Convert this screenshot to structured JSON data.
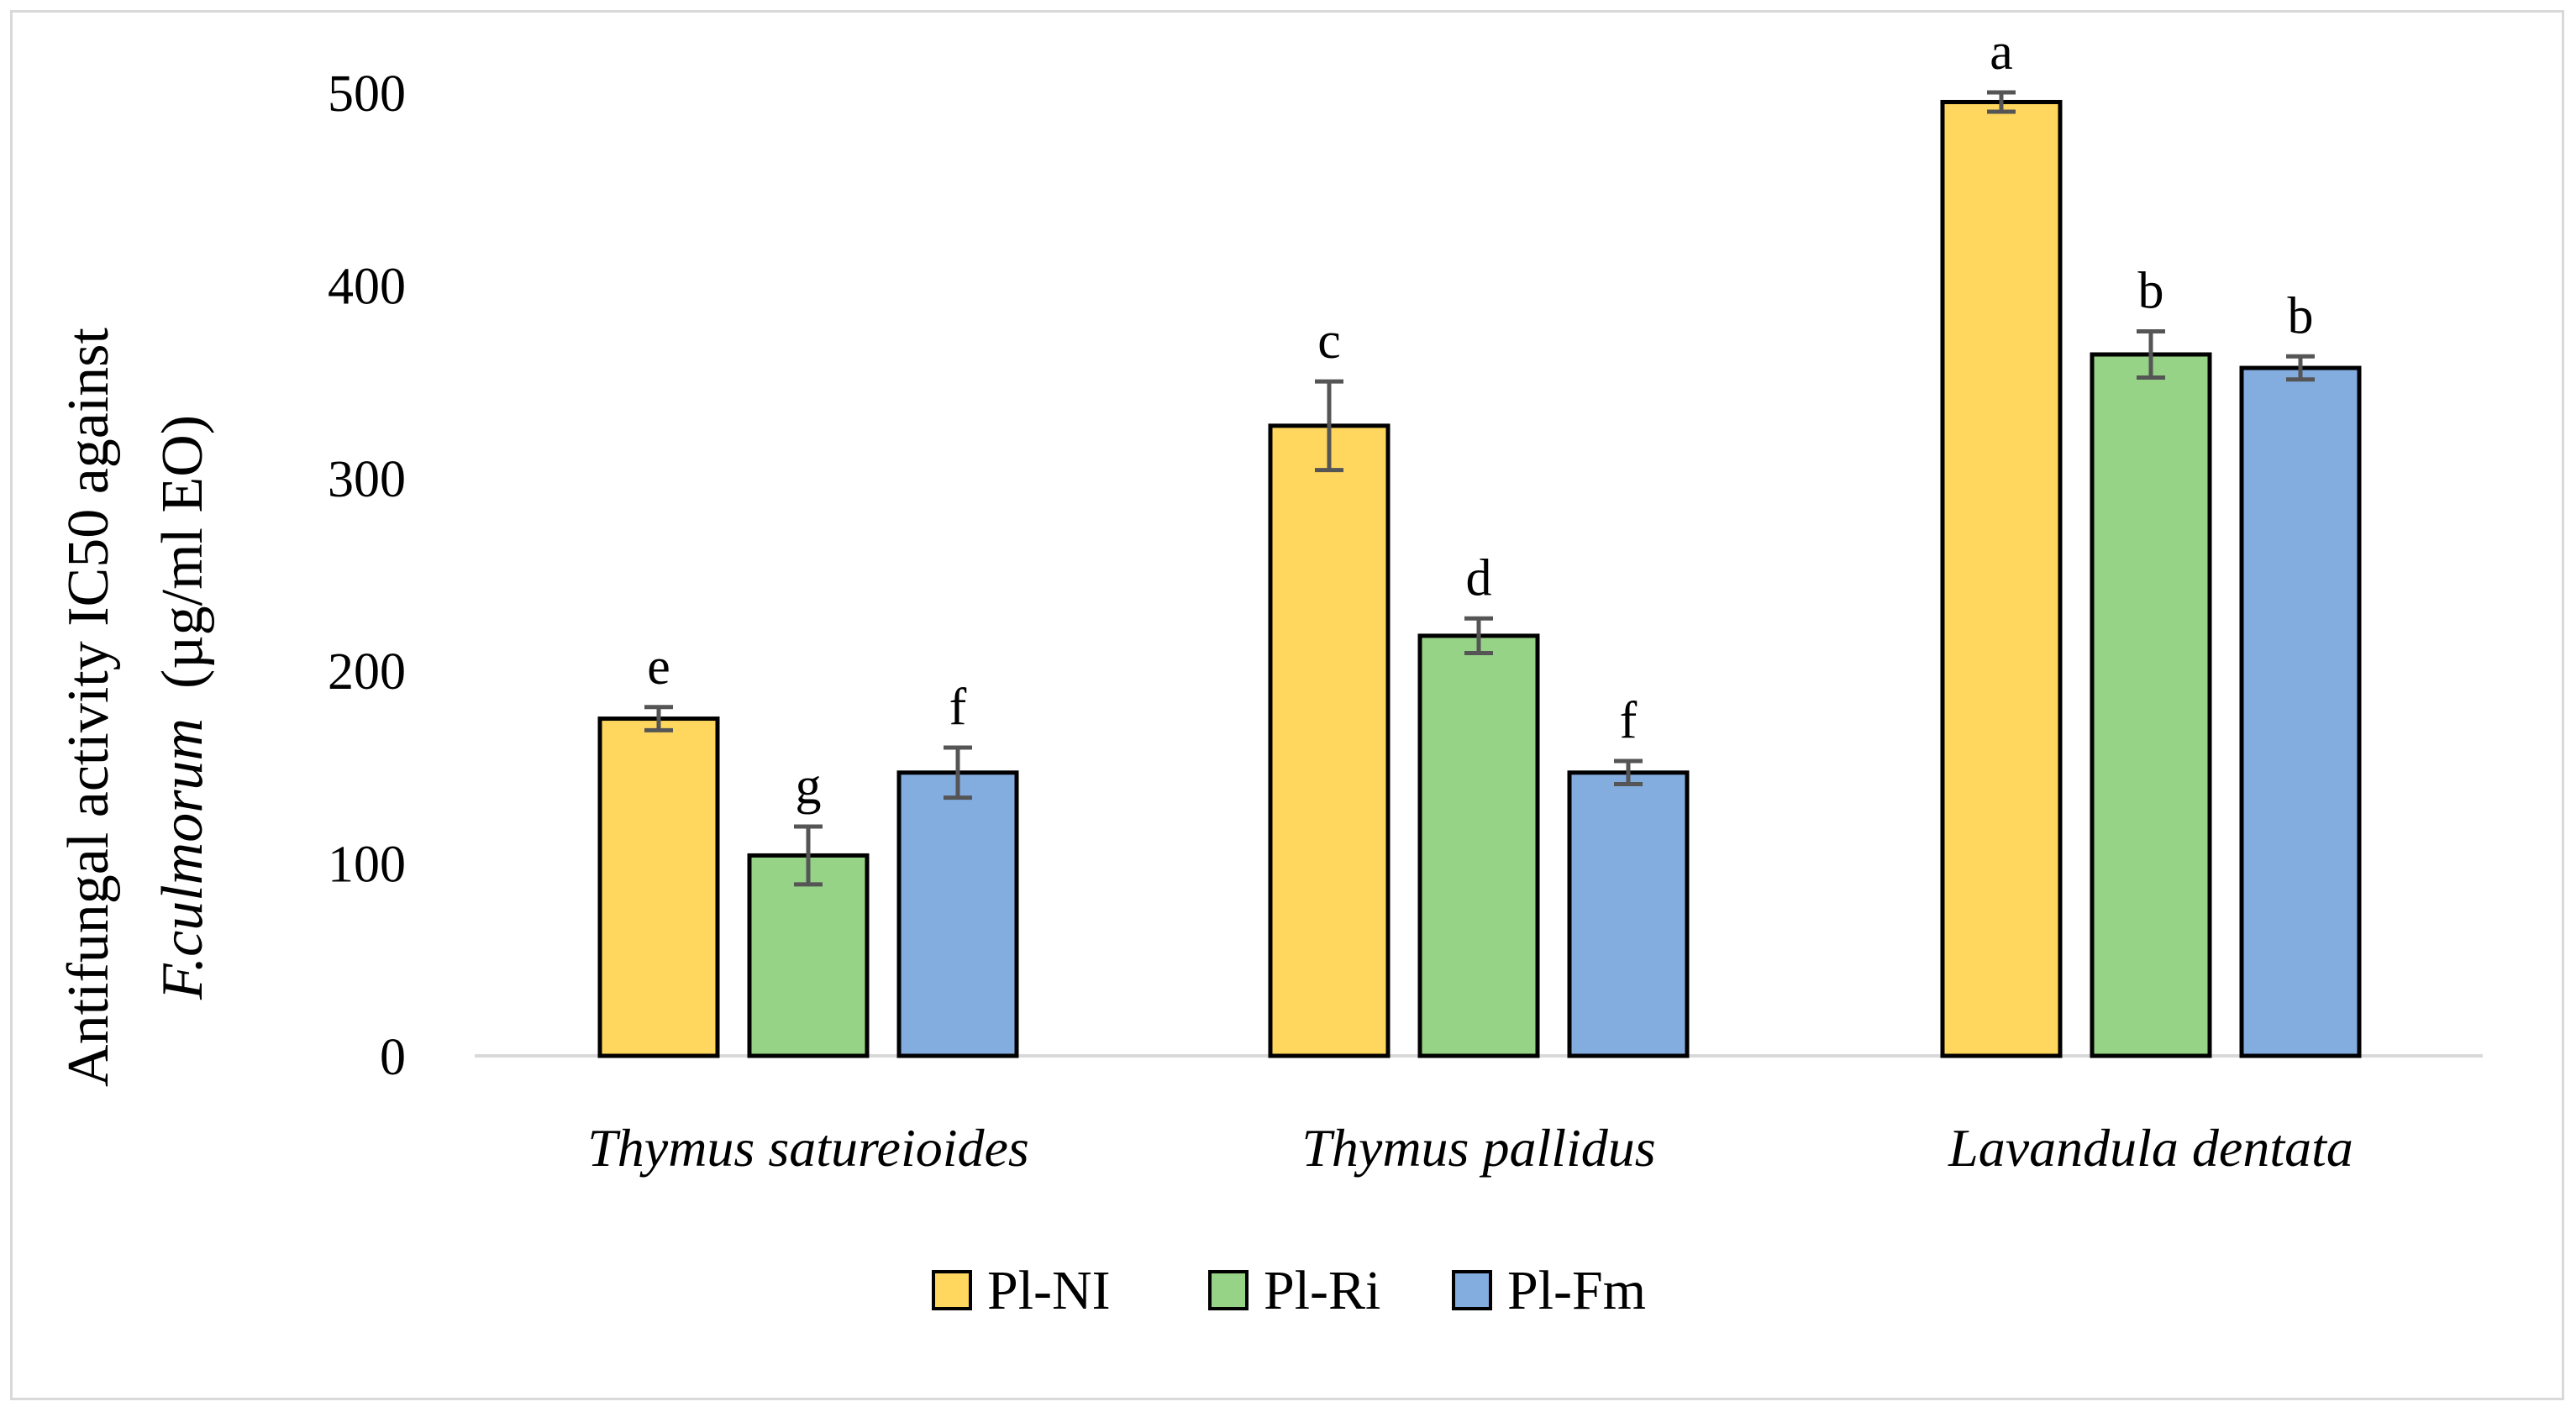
{
  "chart_data": {
    "type": "bar",
    "title": "",
    "xlabel": "",
    "ylabel_line1": "Antifungal activity IC50 against",
    "ylabel_line2_italic": "F.culmorum",
    "ylabel_line2_rest": "  (µg/ml EO)",
    "ylim": [
      0,
      500
    ],
    "yticks": [
      "0",
      "100",
      "200",
      "300",
      "400",
      "500"
    ],
    "grid": false,
    "legend_position": "bottom",
    "categories": [
      "Thymus satureioides",
      "Thymus pallidus",
      "Lavandula dentata"
    ],
    "series": [
      {
        "name": "Pl-NI",
        "color": "#FFD75E",
        "values": [
          175,
          327,
          495
        ],
        "errors": [
          6,
          23,
          5
        ],
        "letters": [
          "e",
          "c",
          "a"
        ]
      },
      {
        "name": "Pl-Ri",
        "color": "#96D386",
        "values": [
          104,
          218,
          364
        ],
        "errors": [
          15,
          9,
          12
        ],
        "letters": [
          "g",
          "d",
          "b"
        ]
      },
      {
        "name": "Pl-Fm",
        "color": "#83ACDF",
        "values": [
          147,
          147,
          357
        ],
        "errors": [
          13,
          6,
          6
        ],
        "letters": [
          "f",
          "f",
          "b"
        ]
      }
    ]
  }
}
